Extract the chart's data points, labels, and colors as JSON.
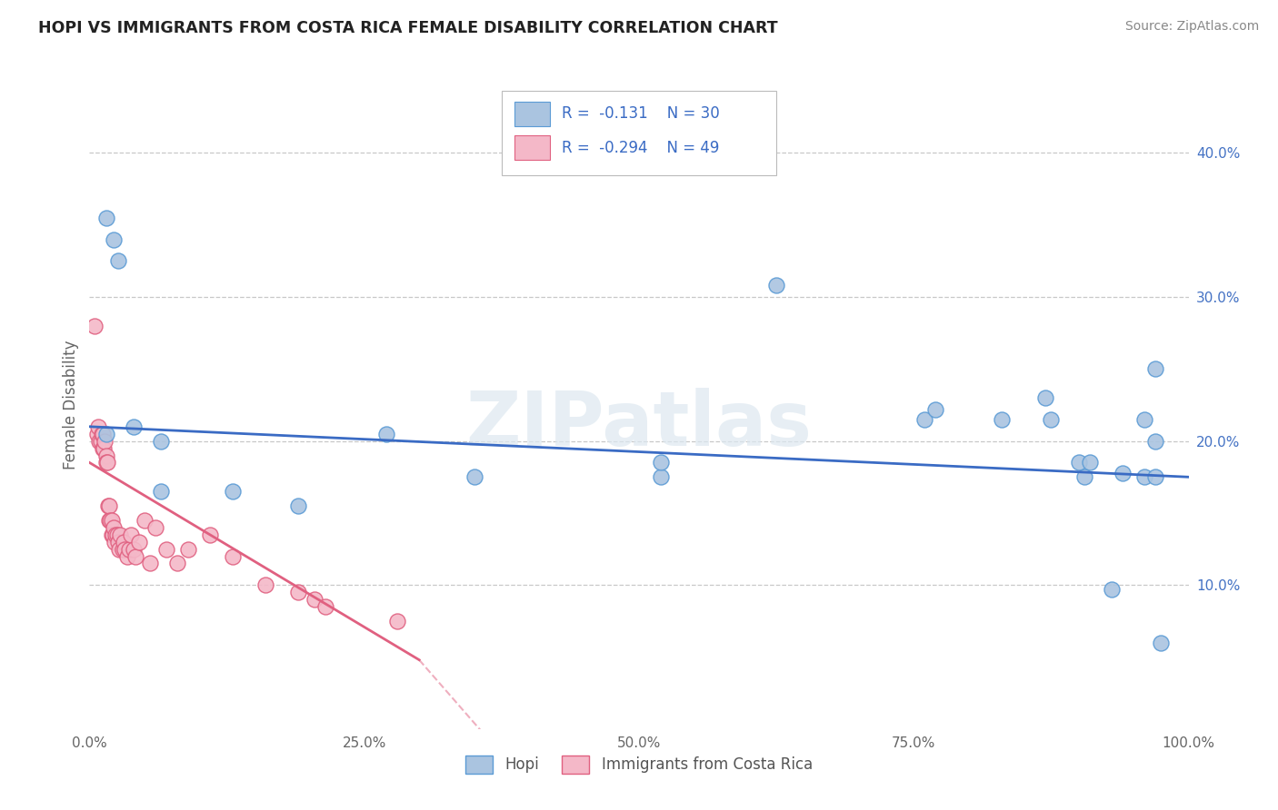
{
  "title": "HOPI VS IMMIGRANTS FROM COSTA RICA FEMALE DISABILITY CORRELATION CHART",
  "source": "Source: ZipAtlas.com",
  "ylabel": "Female Disability",
  "xlim": [
    0.0,
    1.0
  ],
  "ylim": [
    0.0,
    0.45
  ],
  "xticks": [
    0.0,
    0.25,
    0.5,
    0.75,
    1.0
  ],
  "xtick_labels": [
    "0.0%",
    "25.0%",
    "50.0%",
    "75.0%",
    "100.0%"
  ],
  "yticks": [
    0.1,
    0.2,
    0.3,
    0.4
  ],
  "ytick_labels": [
    "10.0%",
    "20.0%",
    "30.0%",
    "40.0%"
  ],
  "grid_color": "#c8c8c8",
  "background_color": "#ffffff",
  "watermark_text": "ZIPatlas",
  "hopi_color": "#aac4e0",
  "hopi_edge_color": "#5b9bd5",
  "hopi_R": -0.131,
  "hopi_N": 30,
  "hopi_line_color": "#3a6bc4",
  "cr_color": "#f4b8c8",
  "cr_edge_color": "#e06080",
  "cr_R": -0.294,
  "cr_N": 49,
  "cr_line_color": "#e06080",
  "hopi_x": [
    0.015,
    0.022,
    0.026,
    0.015,
    0.04,
    0.065,
    0.065,
    0.13,
    0.19,
    0.27,
    0.35,
    0.52,
    0.52,
    0.625,
    0.76,
    0.77,
    0.83,
    0.87,
    0.875,
    0.9,
    0.905,
    0.91,
    0.93,
    0.94,
    0.96,
    0.96,
    0.97,
    0.97,
    0.975,
    0.97
  ],
  "hopi_y": [
    0.355,
    0.34,
    0.325,
    0.205,
    0.21,
    0.2,
    0.165,
    0.165,
    0.155,
    0.205,
    0.175,
    0.175,
    0.185,
    0.308,
    0.215,
    0.222,
    0.215,
    0.23,
    0.215,
    0.185,
    0.175,
    0.185,
    0.097,
    0.178,
    0.175,
    0.215,
    0.175,
    0.2,
    0.06,
    0.25
  ],
  "cr_x": [
    0.005,
    0.007,
    0.008,
    0.009,
    0.01,
    0.011,
    0.012,
    0.012,
    0.013,
    0.014,
    0.015,
    0.015,
    0.016,
    0.017,
    0.018,
    0.018,
    0.019,
    0.02,
    0.02,
    0.021,
    0.022,
    0.023,
    0.024,
    0.025,
    0.026,
    0.027,
    0.028,
    0.03,
    0.031,
    0.032,
    0.034,
    0.036,
    0.038,
    0.04,
    0.042,
    0.045,
    0.05,
    0.055,
    0.06,
    0.07,
    0.08,
    0.09,
    0.11,
    0.13,
    0.16,
    0.19,
    0.205,
    0.215,
    0.28
  ],
  "cr_y": [
    0.28,
    0.205,
    0.21,
    0.2,
    0.2,
    0.205,
    0.205,
    0.195,
    0.195,
    0.2,
    0.19,
    0.185,
    0.185,
    0.155,
    0.145,
    0.155,
    0.145,
    0.145,
    0.135,
    0.135,
    0.14,
    0.13,
    0.135,
    0.135,
    0.13,
    0.125,
    0.135,
    0.125,
    0.13,
    0.125,
    0.12,
    0.125,
    0.135,
    0.125,
    0.12,
    0.13,
    0.145,
    0.115,
    0.14,
    0.125,
    0.115,
    0.125,
    0.135,
    0.12,
    0.1,
    0.095,
    0.09,
    0.085,
    0.075
  ]
}
